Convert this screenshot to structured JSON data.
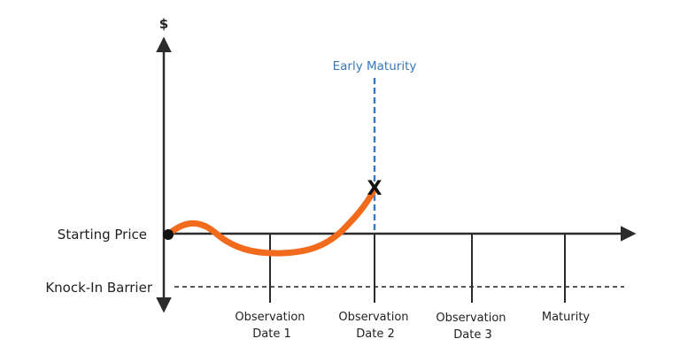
{
  "diagram": {
    "y_axis_label": "$",
    "early_maturity_label": "Early Maturity",
    "starting_price_label": "Starting Price",
    "knock_in_barrier_label": "Knock-In Barrier",
    "observation_dates": [
      {
        "line1": "Observation",
        "line2": "Date 1"
      },
      {
        "line1": "Observation",
        "line2": "Date 2"
      },
      {
        "line1": "Observation",
        "line2": "Date 3"
      }
    ],
    "maturity_label": "Maturity",
    "event_marker": "X"
  },
  "colors": {
    "axis": "#2b2b2b",
    "price_path": "#f26a1b",
    "early_maturity": "#3a78b8",
    "barrier": "#222222"
  }
}
